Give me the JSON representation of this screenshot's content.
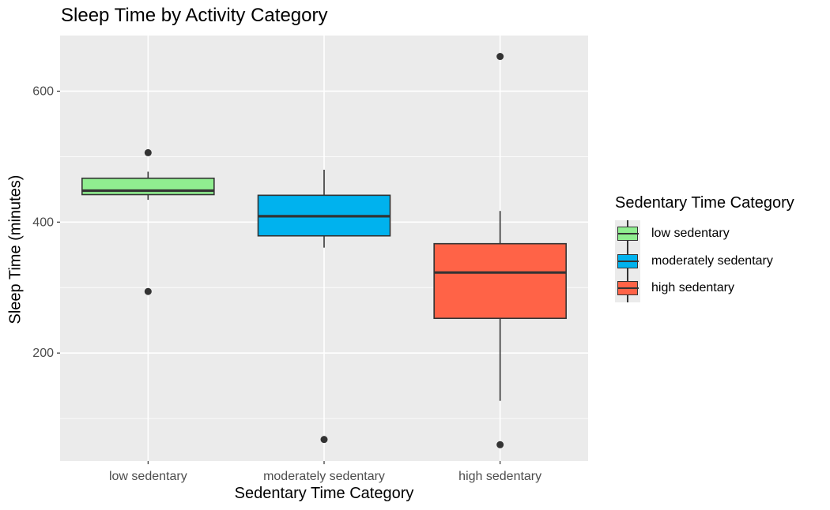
{
  "chart_data": {
    "type": "box",
    "title": "Sleep Time by Activity Category",
    "xlabel": "Sedentary Time Category",
    "ylabel": "Sleep Time (minutes)",
    "ylim": [
      35,
      685
    ],
    "yticks": [
      200,
      400,
      600
    ],
    "grid": true,
    "legend": {
      "title": "Sedentary Time Category",
      "placement": "right"
    },
    "categories": [
      "low sedentary",
      "moderately sedentary",
      "high sedentary"
    ],
    "series": [
      {
        "name": "low sedentary",
        "color": "#90EE90",
        "whisker_low": 434,
        "q1": 442,
        "median": 448,
        "q3": 467,
        "whisker_high": 477,
        "outliers": [
          506,
          294
        ]
      },
      {
        "name": "moderately sedentary",
        "color": "#00B2EE",
        "whisker_low": 361,
        "q1": 379,
        "median": 409,
        "q3": 441,
        "whisker_high": 480,
        "outliers": [
          68
        ]
      },
      {
        "name": "high sedentary",
        "color": "#FF6347",
        "whisker_low": 127,
        "q1": 253,
        "median": 323,
        "q3": 367,
        "whisker_high": 417,
        "outliers": [
          653,
          60
        ]
      }
    ]
  }
}
